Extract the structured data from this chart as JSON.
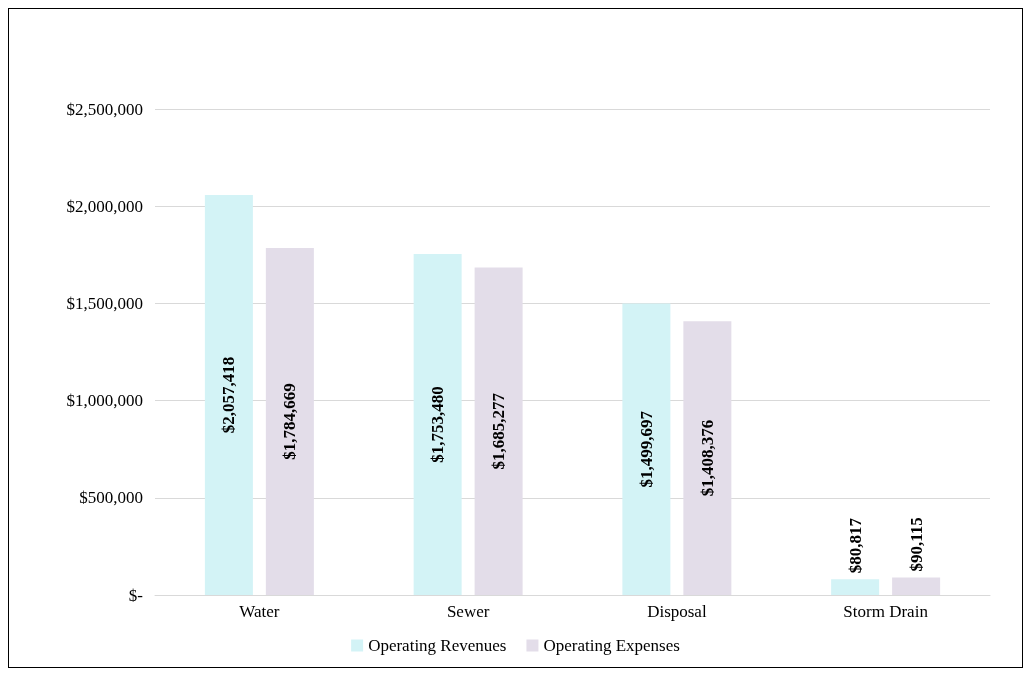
{
  "chart_data": {
    "type": "bar",
    "categories": [
      "Water",
      "Sewer",
      "Disposal",
      "Storm Drain"
    ],
    "series": [
      {
        "name": "Operating Revenues",
        "color": "#d3f3f6",
        "values": [
          2057418,
          1753480,
          1499697,
          80817
        ],
        "value_labels": [
          "$2,057,418",
          "$1,753,480",
          "$1,499,697",
          "$80,817"
        ]
      },
      {
        "name": "Operating Expenses",
        "color": "#e3dde9",
        "values": [
          1784669,
          1685277,
          1408376,
          90115
        ],
        "value_labels": [
          "$1,784,669",
          "$1,685,277",
          "$1,408,376",
          "$90,115"
        ]
      }
    ],
    "ylim": [
      0,
      2500000
    ],
    "yticks": [
      {
        "value": 0,
        "label": "$-"
      },
      {
        "value": 500000,
        "label": "$500,000"
      },
      {
        "value": 1000000,
        "label": "$1,000,000"
      },
      {
        "value": 1500000,
        "label": "$1,500,000"
      },
      {
        "value": 2000000,
        "label": "$2,000,000"
      },
      {
        "value": 2500000,
        "label": "$2,500,000"
      }
    ],
    "grid": "y",
    "legend": "bottom"
  }
}
